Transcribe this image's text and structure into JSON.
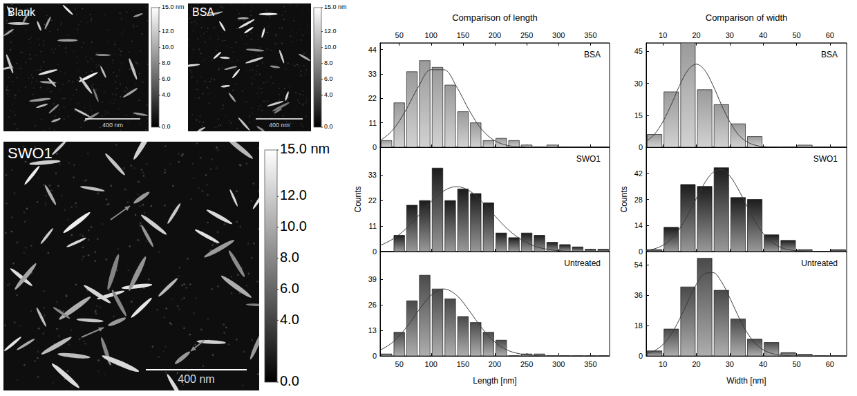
{
  "images": [
    {
      "label": "Blank",
      "scale_bar": "400 nm",
      "colorbar": {
        "range": [
          0,
          15
        ],
        "ticks": [
          {
            "value": 15,
            "label": "15.0 nm"
          },
          {
            "value": 12,
            "label": "12.0"
          },
          {
            "value": 10,
            "label": "10.0"
          },
          {
            "value": 8,
            "label": "8.0"
          },
          {
            "value": 6,
            "label": "6.0"
          },
          {
            "value": 4,
            "label": "4.0"
          },
          {
            "value": 0,
            "label": "0.0"
          }
        ]
      }
    },
    {
      "label": "BSA",
      "scale_bar": "400 nm",
      "colorbar": {
        "range": [
          0,
          15
        ],
        "ticks": [
          {
            "value": 15,
            "label": "15.0 nm"
          },
          {
            "value": 12,
            "label": "12.0"
          },
          {
            "value": 10,
            "label": "10.0"
          },
          {
            "value": 8,
            "label": "8.0"
          },
          {
            "value": 6,
            "label": "6.0"
          },
          {
            "value": 4,
            "label": "4.0"
          },
          {
            "value": 0,
            "label": "0.0"
          }
        ]
      }
    },
    {
      "label": "SWO1",
      "scale_bar": "400 nm",
      "colorbar": {
        "range": [
          0,
          15
        ],
        "ticks": [
          {
            "value": 15,
            "label": "15.0 nm"
          },
          {
            "value": 12,
            "label": "12.0"
          },
          {
            "value": 10,
            "label": "10.0"
          },
          {
            "value": 8,
            "label": "8.0"
          },
          {
            "value": 6,
            "label": "6.0"
          },
          {
            "value": 4,
            "label": "4.0"
          },
          {
            "value": 0,
            "label": "0.0"
          }
        ]
      }
    }
  ],
  "chart_data": [
    {
      "type": "histogram",
      "title": "Comparison of length",
      "xlabel": "Length [nm]",
      "ylabel": "Counts",
      "xlim": [
        20,
        380
      ],
      "xticks": [
        50,
        100,
        150,
        200,
        250,
        300,
        350
      ],
      "bins": [
        20,
        40,
        60,
        80,
        100,
        120,
        140,
        160,
        180,
        200,
        220,
        240,
        260,
        280,
        300,
        320,
        340,
        360,
        380
      ],
      "series": [
        {
          "name": "BSA",
          "color": "#9a9a9a",
          "ylim": [
            0,
            47
          ],
          "yticks": [
            0,
            11,
            22,
            33,
            44
          ],
          "values": [
            3,
            20,
            34,
            39,
            36,
            28,
            16,
            11,
            3,
            4,
            3,
            1,
            0,
            1,
            0,
            0,
            0,
            0
          ],
          "fit": {
            "x": [
              20,
              40,
              60,
              80,
              100,
              120,
              140,
              160,
              180,
              200,
              220,
              240,
              260,
              280,
              300,
              320,
              340,
              360,
              380
            ],
            "y": [
              2.9,
              7.8,
              16.5,
              27.2,
              34.9,
              34.9,
              27.2,
              16.5,
              7.8,
              2.9,
              0.8,
              0.2,
              0,
              0,
              0,
              0,
              0,
              0,
              0
            ]
          }
        },
        {
          "name": "SWO1",
          "color": "#1c1c1c",
          "ylim": [
            0,
            45
          ],
          "yticks": [
            0,
            11,
            22,
            33
          ],
          "values": [
            0,
            7,
            20,
            22,
            36,
            22,
            27,
            25,
            21,
            8,
            6,
            8,
            7,
            4,
            3,
            2,
            1,
            1
          ],
          "fit": {
            "x": [
              20,
              40,
              60,
              80,
              100,
              120,
              140,
              160,
              180,
              200,
              220,
              240,
              260,
              280,
              300,
              320,
              340,
              360,
              380
            ],
            "y": [
              2.6,
              5.4,
              9.7,
              15.4,
              21.5,
              26.2,
              28,
              26.2,
              21.5,
              15.4,
              9.7,
              5.4,
              2.6,
              1.1,
              0.4,
              0.1,
              0,
              0,
              0
            ]
          }
        },
        {
          "name": "Untreated",
          "color": "#4a4a4a",
          "ylim": [
            0,
            53
          ],
          "yticks": [
            0,
            13,
            26,
            39
          ],
          "values": [
            1,
            12,
            28,
            41,
            34,
            29,
            20,
            17,
            12,
            8,
            0,
            1,
            1,
            0,
            0,
            0,
            0,
            0
          ],
          "fit": {
            "x": [
              20,
              40,
              60,
              80,
              100,
              120,
              140,
              160,
              180,
              200,
              220,
              240,
              260,
              280,
              300,
              320,
              340,
              360,
              380
            ],
            "y": [
              2.9,
              7.0,
              14.0,
              22.9,
              30.8,
              34,
              30.8,
              22.9,
              14.0,
              7.0,
              2.9,
              1.0,
              0.3,
              0,
              0,
              0,
              0,
              0,
              0
            ]
          }
        }
      ]
    },
    {
      "type": "histogram",
      "title": "Comparison of width",
      "xlabel": "Width [nm]",
      "ylabel": "Counts",
      "xlim": [
        5,
        65
      ],
      "xticks": [
        10,
        20,
        30,
        40,
        50,
        60
      ],
      "bins": [
        5,
        10,
        15,
        20,
        25,
        30,
        35,
        40,
        45,
        50,
        55,
        60,
        65
      ],
      "series": [
        {
          "name": "BSA",
          "color": "#9a9a9a",
          "ylim": [
            0,
            49
          ],
          "yticks": [
            0,
            15,
            30,
            45
          ],
          "values": [
            6,
            26,
            49,
            27,
            20,
            11,
            5,
            0,
            0,
            1,
            0,
            0
          ],
          "fit": {
            "x": [
              5,
              7.5,
              10,
              12.5,
              15,
              17.5,
              20,
              22.5,
              25,
              27.5,
              30,
              32.5,
              35,
              37.5,
              40,
              42.5,
              45,
              47.5,
              50,
              52.5,
              55,
              57.5,
              60,
              62.5,
              65
            ],
            "y": [
              2.7,
              6.1,
              12.0,
              20.0,
              29.0,
              36.2,
              39,
              36.2,
              29.0,
              20.0,
              12.0,
              6.1,
              2.7,
              1.0,
              0.3,
              0.1,
              0,
              0,
              0,
              0,
              0,
              0,
              0,
              0,
              0
            ]
          }
        },
        {
          "name": "SWO1",
          "color": "#1c1c1c",
          "ylim": [
            0,
            56
          ],
          "yticks": [
            0,
            14,
            28,
            42
          ],
          "values": [
            1,
            13,
            36,
            35,
            45,
            29,
            28,
            9,
            6,
            1,
            0,
            1
          ],
          "fit": {
            "x": [
              5,
              7.5,
              10,
              12.5,
              15,
              17.5,
              20,
              22.5,
              25,
              27.5,
              30,
              32.5,
              35,
              37.5,
              40,
              42.5,
              45,
              47.5,
              50,
              52.5,
              55,
              57.5,
              60,
              62.5,
              65
            ],
            "y": [
              0.6,
              1.5,
              3.4,
              6.8,
              12.2,
              19.8,
              28.5,
              36.8,
              42.5,
              44,
              40.6,
              33.6,
              24.9,
              16.5,
              9.8,
              5.2,
              2.5,
              1.0,
              0.4,
              0.1,
              0,
              0,
              0,
              0,
              0
            ]
          }
        },
        {
          "name": "Untreated",
          "color": "#4a4a4a",
          "ylim": [
            0,
            62
          ],
          "yticks": [
            0,
            18,
            36,
            54
          ],
          "values": [
            3,
            16,
            41,
            58,
            39,
            22,
            10,
            8,
            2,
            1,
            0,
            0
          ],
          "fit": {
            "x": [
              5,
              7.5,
              10,
              12.5,
              15,
              17.5,
              20,
              22.5,
              25,
              27.5,
              30,
              32.5,
              35,
              37.5,
              40,
              42.5,
              45,
              47.5,
              50,
              52.5,
              55,
              57.5,
              60,
              62.5,
              65
            ],
            "y": [
              1.3,
              3.1,
              6.8,
              13.0,
              21.9,
              32.5,
              42.5,
              48.9,
              49.5,
              44.1,
              34.6,
              23.9,
              14.5,
              7.8,
              3.7,
              1.5,
              0.6,
              0.2,
              0,
              0,
              0,
              0,
              0,
              0,
              0
            ]
          }
        }
      ]
    }
  ]
}
